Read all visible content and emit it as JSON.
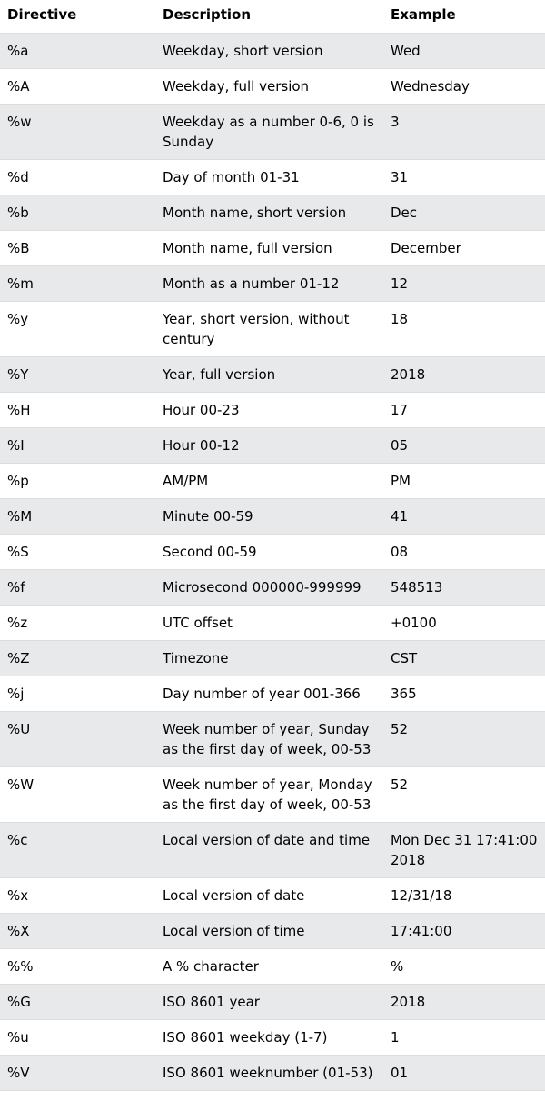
{
  "table": {
    "headers": [
      "Directive",
      "Description",
      "Example"
    ],
    "rows": [
      [
        "%a",
        "Weekday, short version",
        "Wed"
      ],
      [
        "%A",
        "Weekday, full version",
        "Wednesday"
      ],
      [
        "%w",
        "Weekday as a number 0-6, 0 is Sunday",
        "3"
      ],
      [
        "%d",
        "Day of month 01-31",
        "31"
      ],
      [
        "%b",
        "Month name, short version",
        "Dec"
      ],
      [
        "%B",
        "Month name, full version",
        "December"
      ],
      [
        "%m",
        "Month as a number 01-12",
        "12"
      ],
      [
        "%y",
        "Year, short version, without century",
        "18"
      ],
      [
        "%Y",
        "Year, full version",
        "2018"
      ],
      [
        "%H",
        "Hour 00-23",
        "17"
      ],
      [
        "%I",
        "Hour 00-12",
        "05"
      ],
      [
        "%p",
        "AM/PM",
        "PM"
      ],
      [
        "%M",
        "Minute 00-59",
        "41"
      ],
      [
        "%S",
        "Second 00-59",
        "08"
      ],
      [
        "%f",
        "Microsecond 000000-999999",
        "548513"
      ],
      [
        "%z",
        "UTC offset",
        "+0100"
      ],
      [
        "%Z",
        "Timezone",
        "CST"
      ],
      [
        "%j",
        "Day number of year 001-366",
        "365"
      ],
      [
        "%U",
        "Week number of year, Sunday as the first day of week, 00-53",
        "52"
      ],
      [
        "%W",
        "Week number of year, Monday as the first day of week, 00-53",
        "52"
      ],
      [
        "%c",
        "Local version of date and time",
        "Mon Dec 31 17:41:00 2018"
      ],
      [
        "%x",
        "Local version of date",
        "12/31/18"
      ],
      [
        "%X",
        "Local version of time",
        "17:41:00"
      ],
      [
        "%%",
        "A % character",
        "%"
      ],
      [
        "%G",
        "ISO 8601 year",
        "2018"
      ],
      [
        "%u",
        "ISO 8601 weekday (1-7)",
        "1"
      ],
      [
        "%V",
        "ISO 8601 weeknumber (01-53)",
        "01"
      ]
    ]
  }
}
